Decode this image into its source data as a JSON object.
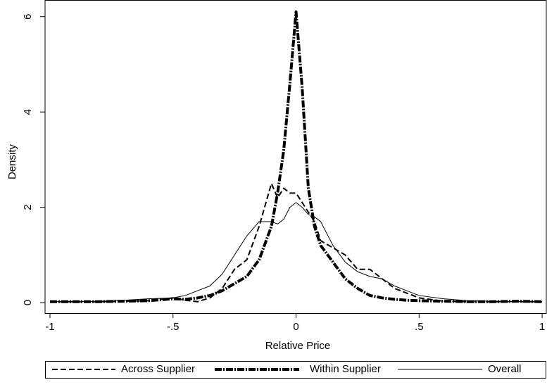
{
  "chart_data": {
    "type": "line",
    "x_label": "Relative Price",
    "y_label": "Density",
    "x": [
      -1,
      -0.9,
      -0.8,
      -0.7,
      -0.6,
      -0.5,
      -0.45,
      -0.4,
      -0.35,
      -0.3,
      -0.25,
      -0.2,
      -0.15,
      -0.1,
      -0.075,
      -0.05,
      -0.025,
      0,
      0.025,
      0.05,
      0.075,
      0.1,
      0.15,
      0.2,
      0.25,
      0.3,
      0.35,
      0.4,
      0.45,
      0.5,
      0.6,
      0.7,
      0.8,
      0.9,
      1
    ],
    "series": [
      {
        "name": "Across Supplier",
        "color": "#000000",
        "line_style": "dash",
        "values": [
          0.02,
          0.02,
          0.02,
          0.03,
          0.04,
          0.1,
          0.05,
          0.02,
          0.1,
          0.3,
          0.7,
          0.9,
          1.6,
          2.5,
          2.2,
          2.4,
          2.3,
          2.3,
          2.1,
          1.9,
          1.7,
          1.3,
          1.15,
          1.0,
          0.7,
          0.7,
          0.5,
          0.3,
          0.2,
          0.1,
          0.03,
          0.02,
          0.02,
          0.02,
          0.02
        ]
      },
      {
        "name": "Within Supplier",
        "color": "#000000",
        "line_style": "dash-dot",
        "values": [
          0.02,
          0.02,
          0.02,
          0.03,
          0.04,
          0.08,
          0.07,
          0.1,
          0.15,
          0.25,
          0.4,
          0.55,
          0.9,
          1.6,
          2.3,
          3.2,
          4.6,
          6.1,
          4.5,
          2.4,
          1.6,
          1.2,
          0.85,
          0.5,
          0.3,
          0.15,
          0.1,
          0.07,
          0.05,
          0.04,
          0.03,
          0.02,
          0.02,
          0.03,
          0.02
        ]
      },
      {
        "name": "Overall",
        "color": "#000000",
        "line_style": "solid",
        "values": [
          0.02,
          0.02,
          0.03,
          0.05,
          0.08,
          0.1,
          0.15,
          0.25,
          0.35,
          0.6,
          1.0,
          1.4,
          1.7,
          1.7,
          1.65,
          1.75,
          2.0,
          2.1,
          2.0,
          1.85,
          1.8,
          1.7,
          1.2,
          0.85,
          0.65,
          0.55,
          0.5,
          0.35,
          0.25,
          0.15,
          0.08,
          0.04,
          0.03,
          0.02,
          0.02
        ]
      }
    ],
    "xlim": [
      -1.02,
      1.017
    ],
    "ylim": [
      -0.22,
      6.35
    ],
    "xticks": [
      {
        "value": -1,
        "label": "-1"
      },
      {
        "value": -0.5,
        "label": "-.5"
      },
      {
        "value": 0,
        "label": "0"
      },
      {
        "value": 0.5,
        "label": ".5"
      },
      {
        "value": 1,
        "label": "1"
      }
    ],
    "yticks": [
      0,
      2,
      4,
      6
    ],
    "grid": false,
    "legend": "bottom"
  }
}
